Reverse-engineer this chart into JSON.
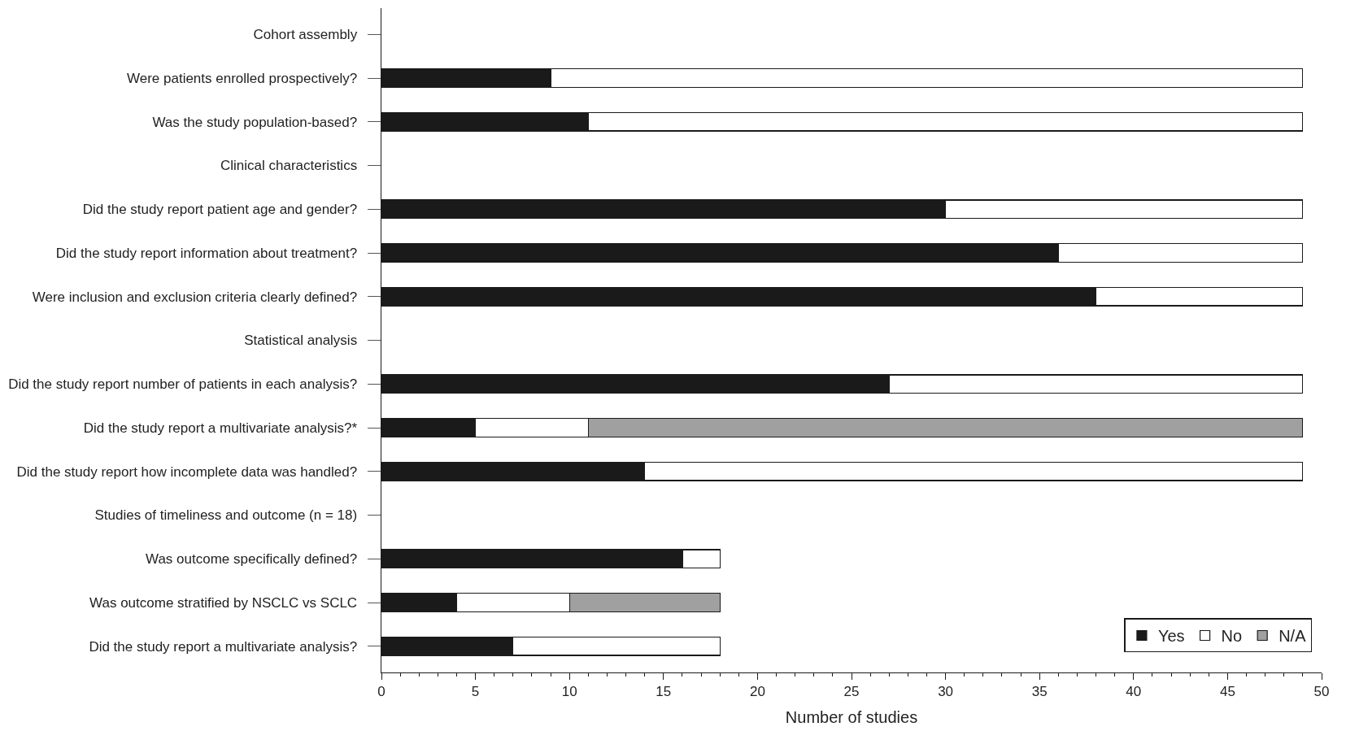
{
  "chart_data": {
    "type": "bar",
    "orientation": "horizontal",
    "stacked": true,
    "xlabel": "Number of studies",
    "categories": [
      "Cohort assembly",
      "Were patients enrolled prospectively?",
      "Was the study population-based?",
      "Clinical characteristics",
      "Did the study report patient age and gender?",
      "Did the study report information about treatment?",
      "Were inclusion and exclusion criteria clearly defined?",
      "Statistical analysis",
      "Did the study report number of patients in each analysis?",
      "Did the study report a multivariate analysis?*",
      "Did the study report how incomplete data was handled?",
      "Studies of timeliness and outcome (n = 18)",
      "Was outcome specifically defined?",
      "Was outcome stratified by NSCLC vs SCLC",
      "Did the study report a multivariate analysis?"
    ],
    "series": [
      {
        "name": "Yes",
        "color": "#1a1a1a",
        "values": [
          null,
          9,
          11,
          null,
          30,
          36,
          38,
          null,
          27,
          5,
          14,
          null,
          16,
          4,
          7
        ]
      },
      {
        "name": "No",
        "color": "#ffffff",
        "values": [
          null,
          40,
          38,
          null,
          19,
          13,
          11,
          null,
          22,
          6,
          35,
          null,
          2,
          6,
          11
        ]
      },
      {
        "name": "N/A",
        "color": "#a0a0a0",
        "values": [
          null,
          null,
          null,
          null,
          null,
          null,
          null,
          null,
          null,
          38,
          null,
          null,
          null,
          8,
          null
        ]
      }
    ],
    "xlim": [
      0,
      50
    ],
    "xticks": [
      0,
      5,
      10,
      15,
      20,
      25,
      30,
      35,
      40,
      45,
      50
    ],
    "legend": "bottom right"
  }
}
